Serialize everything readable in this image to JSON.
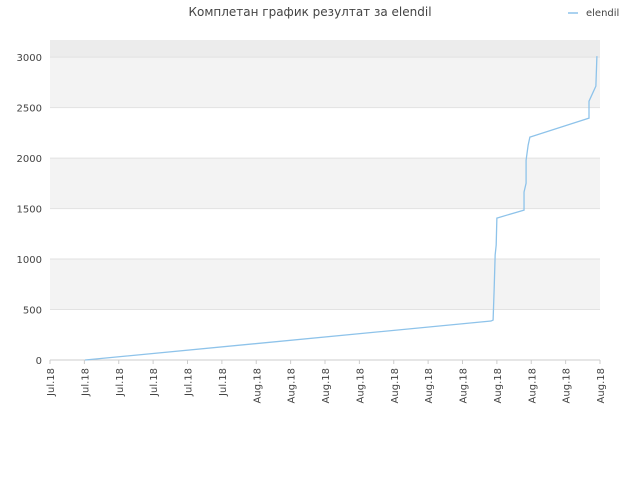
{
  "chart_data": {
    "type": "line",
    "title": "Комплетан график резултат за elendil",
    "x": [
      1.02,
      12.83,
      12.89,
      12.92,
      12.95,
      12.98,
      13.0,
      13.79,
      13.79,
      13.85,
      13.85,
      13.91,
      13.96,
      15.68,
      15.68,
      15.88,
      15.91
    ],
    "series": [
      {
        "name": "elendil",
        "color": "#8ec3ea",
        "values": [
          0,
          386,
          396,
          693,
          1040,
          1139,
          1406,
          1485,
          1663,
          1752,
          1980,
          2129,
          2208,
          2396,
          2564,
          2713,
          3010
        ]
      }
    ],
    "xlim": [
      0,
      16
    ],
    "xticks": [
      {
        "value": 0,
        "label": "Jul.18"
      },
      {
        "value": 1,
        "label": "Jul.18"
      },
      {
        "value": 2,
        "label": "Jul.18"
      },
      {
        "value": 3,
        "label": "Jul.18"
      },
      {
        "value": 4,
        "label": "Jul.18"
      },
      {
        "value": 5,
        "label": "Jul.18"
      },
      {
        "value": 6,
        "label": "Aug.18"
      },
      {
        "value": 7,
        "label": "Aug.18"
      },
      {
        "value": 8,
        "label": "Aug.18"
      },
      {
        "value": 9,
        "label": "Aug.18"
      },
      {
        "value": 10,
        "label": "Aug.18"
      },
      {
        "value": 11,
        "label": "Aug.18"
      },
      {
        "value": 12,
        "label": "Aug.18"
      },
      {
        "value": 13,
        "label": "Aug.18"
      },
      {
        "value": 14,
        "label": "Aug.18"
      },
      {
        "value": 15,
        "label": "Aug.18"
      },
      {
        "value": 16,
        "label": "Aug.18"
      }
    ],
    "ylim": [
      0,
      3170
    ],
    "yticks": [
      0,
      500,
      1000,
      1500,
      2000,
      2500,
      3000
    ],
    "grid": true,
    "legend": "top-right"
  }
}
